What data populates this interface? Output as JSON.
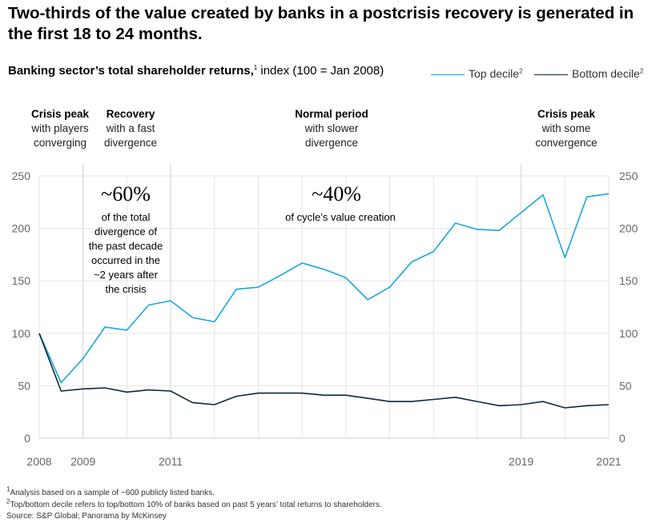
{
  "title": "Two-thirds of the value created by banks in a postcrisis recovery is generated in the first 18 to 24 months.",
  "subtitle": {
    "bold": "Banking sector’s total shareholder returns,",
    "sup": "1",
    "rest": " index (100 = Jan 2008)"
  },
  "legend": [
    {
      "label": "Top decile",
      "sup": "2",
      "color": "#1BA6E0"
    },
    {
      "label": "Bottom decile",
      "sup": "2",
      "color": "#0B2A3D"
    }
  ],
  "phases": [
    {
      "title": "Crisis peak",
      "desc": "with players\nconverging"
    },
    {
      "title": "Recovery",
      "desc": "with a fast\ndivergence"
    },
    {
      "title": "Normal period",
      "desc": "with slower\ndivergence"
    },
    {
      "title": "Crisis peak",
      "desc": "with some\nconvergence"
    }
  ],
  "annotations": [
    {
      "value": "~60%",
      "text": "of the total\ndivergence of\nthe past decade\noccurred in the\n~2 years after\nthe crisis"
    },
    {
      "value": "~40%",
      "text": "of cycle’s value creation"
    }
  ],
  "footnotes": [
    {
      "sup": "1",
      "text": "Analysis based on a sample of ~600 publicly listed banks."
    },
    {
      "sup": "2",
      "text": "Top/bottom decile refers to top/bottom 10% of banks based on past 5 years’ total returns to shareholders."
    },
    {
      "sup": "",
      "text": "Source: S&P Global; Panorama by McKinsey"
    }
  ],
  "chart_data": {
    "type": "line",
    "x": [
      2008.0,
      2008.5,
      2009.0,
      2009.5,
      2010.0,
      2010.5,
      2011.0,
      2011.5,
      2012.0,
      2012.5,
      2013.0,
      2013.5,
      2014.0,
      2014.5,
      2015.0,
      2015.5,
      2016.0,
      2016.5,
      2017.0,
      2017.5,
      2018.0,
      2018.5,
      2019.0,
      2019.5,
      2020.0,
      2020.5,
      2021.0
    ],
    "series": [
      {
        "name": "Top decile",
        "color": "#1BA6E0",
        "values": [
          100,
          53,
          76,
          106,
          103,
          127,
          131,
          115,
          111,
          142,
          144,
          155,
          167,
          161,
          153,
          132,
          144,
          168,
          178,
          205,
          199,
          198,
          215,
          232,
          172,
          230,
          233
        ]
      },
      {
        "name": "Bottom decile",
        "color": "#0B2A3D",
        "values": [
          100,
          45,
          47,
          48,
          44,
          46,
          45,
          34,
          32,
          40,
          43,
          43,
          43,
          41,
          41,
          38,
          35,
          35,
          37,
          39,
          35,
          31,
          32,
          35,
          29,
          31,
          32
        ]
      }
    ],
    "ylim": [
      0,
      260
    ],
    "yticks": [
      0,
      50,
      100,
      150,
      200,
      250
    ],
    "xtick_labels": [
      "2008",
      "2009",
      "2011",
      "2019",
      "2021"
    ],
    "xtick_values": [
      2008,
      2009,
      2011,
      2019,
      2021
    ],
    "grid": true
  }
}
